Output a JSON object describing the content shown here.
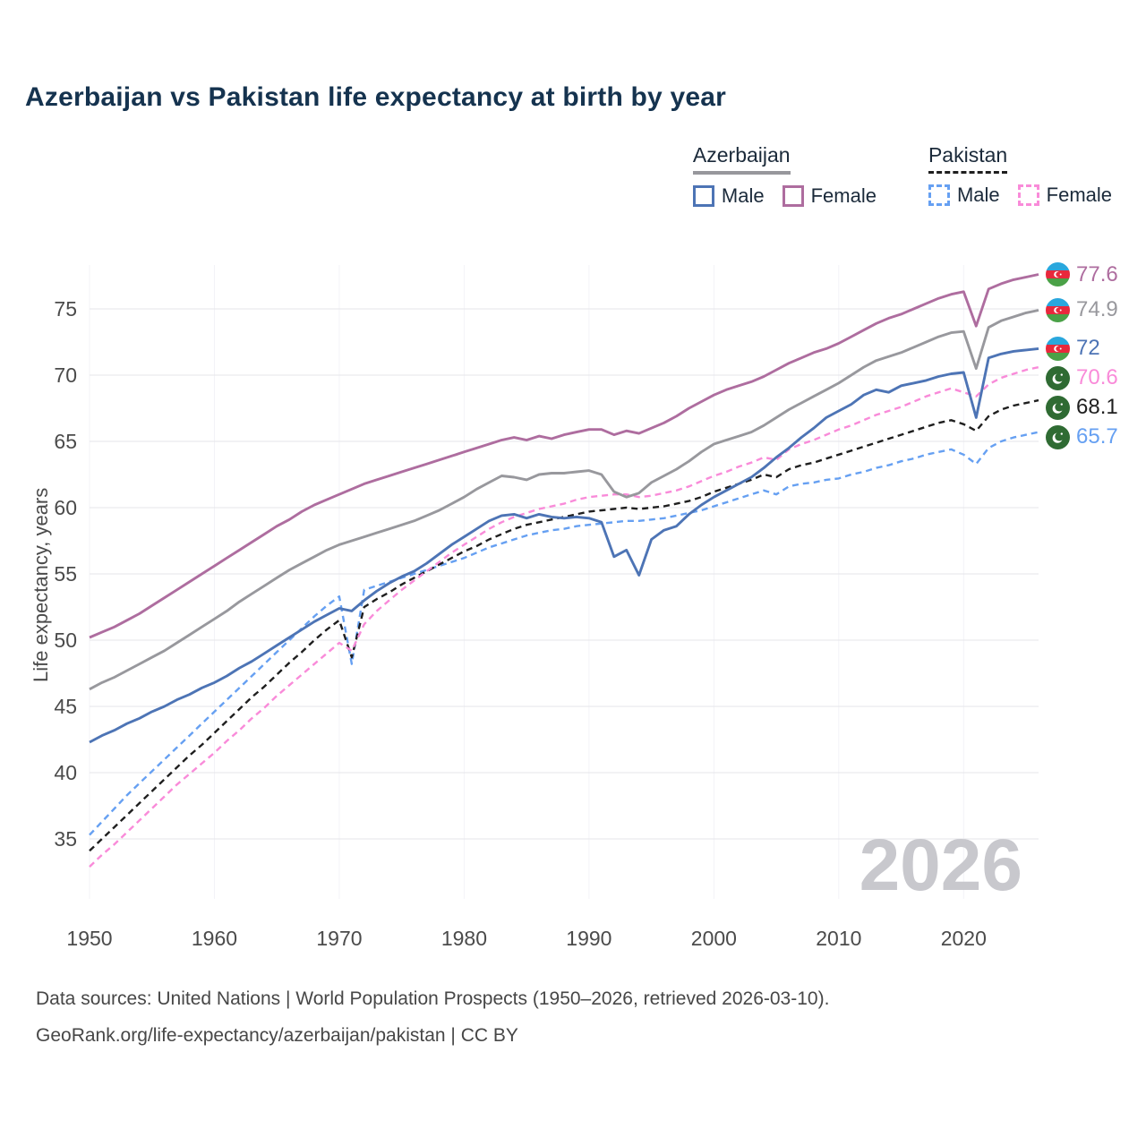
{
  "title": "Azerbaijan vs Pakistan life expectancy at birth by year",
  "watermark": "2026",
  "legend": {
    "groups": [
      {
        "label": "Azerbaijan",
        "line_style": "solid",
        "line_color": "#97979c",
        "items": [
          {
            "label": "Male",
            "color": "#4d74b5",
            "dash": false
          },
          {
            "label": "Female",
            "color": "#ae6d9f",
            "dash": false
          }
        ]
      },
      {
        "label": "Pakistan",
        "line_style": "dashed",
        "line_color": "#1f1f1f",
        "items": [
          {
            "label": "Male",
            "color": "#66a0f2",
            "dash": true
          },
          {
            "label": "Female",
            "color": "#f98bd9",
            "dash": true
          }
        ]
      }
    ]
  },
  "footer": {
    "line1": "Data sources: United Nations | World Population Prospects (1950–2026, retrieved 2026-03-10).",
    "line2": "GeoRank.org/life-expectancy/azerbaijan/pakistan | CC BY"
  },
  "chart_data": {
    "type": "line",
    "title": "Azerbaijan vs Pakistan life expectancy at birth by year",
    "xlabel": "",
    "ylabel": "Life expectancy, years",
    "x_ticks": [
      1950,
      1960,
      1970,
      1980,
      1990,
      2000,
      2010,
      2020
    ],
    "y_ticks": [
      35,
      40,
      45,
      50,
      55,
      60,
      65,
      70,
      75
    ],
    "xlim": [
      1950,
      2026
    ],
    "ylim": [
      32,
      78.5
    ],
    "grid": true,
    "legend_position": "top-right",
    "series": [
      {
        "id": "azerbaijan-female",
        "name": "Azerbaijan Female",
        "country": "Azerbaijan",
        "sex": "Female",
        "style": "solid",
        "color": "#ae6d9f",
        "flag": "azerbaijan",
        "end_label": "77.6",
        "start_year": 1950,
        "values": [
          50.2,
          50.6,
          51.0,
          51.5,
          52.0,
          52.6,
          53.2,
          53.8,
          54.4,
          55.0,
          55.6,
          56.2,
          56.8,
          57.4,
          58.0,
          58.6,
          59.1,
          59.7,
          60.2,
          60.6,
          61.0,
          61.4,
          61.8,
          62.1,
          62.4,
          62.7,
          63.0,
          63.3,
          63.6,
          63.9,
          64.2,
          64.5,
          64.8,
          65.1,
          65.3,
          65.1,
          65.4,
          65.2,
          65.5,
          65.7,
          65.9,
          65.9,
          65.5,
          65.8,
          65.6,
          66.0,
          66.4,
          66.9,
          67.5,
          68.0,
          68.5,
          68.9,
          69.2,
          69.5,
          69.9,
          70.4,
          70.9,
          71.3,
          71.7,
          72.0,
          72.4,
          72.9,
          73.4,
          73.9,
          74.3,
          74.6,
          75.0,
          75.4,
          75.8,
          76.1,
          76.3,
          73.7,
          76.5,
          76.9,
          77.2,
          77.4,
          77.6
        ]
      },
      {
        "id": "azerbaijan-both",
        "name": "Azerbaijan Both sexes",
        "country": "Azerbaijan",
        "sex": "Both sexes",
        "style": "solid",
        "color": "#98989d",
        "flag": "azerbaijan",
        "end_label": "74.9",
        "start_year": 1950,
        "values": [
          46.3,
          46.8,
          47.2,
          47.7,
          48.2,
          48.7,
          49.2,
          49.8,
          50.4,
          51.0,
          51.6,
          52.2,
          52.9,
          53.5,
          54.1,
          54.7,
          55.3,
          55.8,
          56.3,
          56.8,
          57.2,
          57.5,
          57.8,
          58.1,
          58.4,
          58.7,
          59.0,
          59.4,
          59.8,
          60.3,
          60.8,
          61.4,
          61.9,
          62.4,
          62.3,
          62.1,
          62.5,
          62.6,
          62.6,
          62.7,
          62.8,
          62.5,
          61.2,
          60.8,
          61.1,
          61.9,
          62.4,
          62.9,
          63.5,
          64.2,
          64.8,
          65.1,
          65.4,
          65.7,
          66.2,
          66.8,
          67.4,
          67.9,
          68.4,
          68.9,
          69.4,
          70.0,
          70.6,
          71.1,
          71.4,
          71.7,
          72.1,
          72.5,
          72.9,
          73.2,
          73.3,
          70.5,
          73.6,
          74.1,
          74.4,
          74.7,
          74.9
        ]
      },
      {
        "id": "azerbaijan-male",
        "name": "Azerbaijan Male",
        "country": "Azerbaijan",
        "sex": "Male",
        "style": "solid",
        "color": "#4d74b5",
        "flag": "azerbaijan",
        "end_label": "72",
        "start_year": 1950,
        "values": [
          42.3,
          42.8,
          43.2,
          43.7,
          44.1,
          44.6,
          45.0,
          45.5,
          45.9,
          46.4,
          46.8,
          47.3,
          47.9,
          48.4,
          49.0,
          49.6,
          50.2,
          50.8,
          51.4,
          51.9,
          52.4,
          52.2,
          53.0,
          53.7,
          54.3,
          54.8,
          55.2,
          55.8,
          56.5,
          57.2,
          57.8,
          58.4,
          59.0,
          59.4,
          59.5,
          59.2,
          59.5,
          59.3,
          59.2,
          59.3,
          59.2,
          58.9,
          56.3,
          56.8,
          54.9,
          57.6,
          58.3,
          58.6,
          59.5,
          60.2,
          60.8,
          61.3,
          61.8,
          62.3,
          63.0,
          63.8,
          64.5,
          65.3,
          66.0,
          66.8,
          67.3,
          67.8,
          68.5,
          68.9,
          68.7,
          69.2,
          69.4,
          69.6,
          69.9,
          70.1,
          70.2,
          66.8,
          71.3,
          71.6,
          71.8,
          71.9,
          72.0
        ]
      },
      {
        "id": "pakistan-female",
        "name": "Pakistan Female",
        "country": "Pakistan",
        "sex": "Female",
        "style": "dashed",
        "color": "#f98bd9",
        "flag": "pakistan",
        "end_label": "70.6",
        "start_year": 1950,
        "values": [
          32.9,
          33.8,
          34.6,
          35.5,
          36.4,
          37.3,
          38.2,
          39.1,
          39.9,
          40.7,
          41.5,
          42.4,
          43.2,
          44.1,
          44.9,
          45.8,
          46.6,
          47.4,
          48.2,
          49.0,
          49.8,
          49.2,
          51.2,
          52.2,
          53.0,
          53.8,
          54.5,
          55.2,
          55.9,
          56.6,
          57.2,
          57.8,
          58.4,
          58.9,
          59.3,
          59.6,
          59.9,
          60.1,
          60.3,
          60.6,
          60.8,
          60.9,
          61.0,
          61.0,
          60.8,
          60.9,
          61.1,
          61.3,
          61.6,
          62.0,
          62.4,
          62.7,
          63.1,
          63.4,
          63.8,
          63.6,
          64.4,
          64.8,
          65.1,
          65.5,
          65.9,
          66.2,
          66.6,
          67.0,
          67.3,
          67.6,
          68.0,
          68.4,
          68.7,
          69.0,
          68.7,
          68.4,
          69.3,
          69.8,
          70.1,
          70.4,
          70.6
        ]
      },
      {
        "id": "pakistan-both",
        "name": "Pakistan Both sexes",
        "country": "Pakistan",
        "sex": "Both sexes",
        "style": "dashed",
        "color": "#1f1f1f",
        "flag": "pakistan",
        "end_label": "68.1",
        "start_year": 1950,
        "values": [
          34.1,
          35.0,
          35.9,
          36.8,
          37.7,
          38.6,
          39.5,
          40.4,
          41.3,
          42.1,
          43.0,
          43.9,
          44.8,
          45.7,
          46.5,
          47.4,
          48.3,
          49.1,
          50.0,
          50.8,
          51.5,
          48.7,
          52.5,
          53.1,
          53.6,
          54.2,
          54.7,
          55.2,
          55.7,
          56.2,
          56.7,
          57.1,
          57.6,
          58.0,
          58.4,
          58.7,
          58.9,
          59.1,
          59.3,
          59.5,
          59.7,
          59.8,
          59.9,
          60.0,
          59.9,
          60.0,
          60.1,
          60.3,
          60.5,
          60.8,
          61.2,
          61.5,
          61.8,
          62.1,
          62.5,
          62.3,
          62.9,
          63.2,
          63.4,
          63.7,
          64.0,
          64.3,
          64.6,
          64.9,
          65.2,
          65.5,
          65.8,
          66.1,
          66.4,
          66.6,
          66.3,
          65.8,
          66.9,
          67.4,
          67.7,
          67.9,
          68.1
        ]
      },
      {
        "id": "pakistan-male",
        "name": "Pakistan Male",
        "country": "Pakistan",
        "sex": "Male",
        "style": "dashed",
        "color": "#66a0f2",
        "flag": "pakistan",
        "end_label": "65.7",
        "start_year": 1950,
        "values": [
          35.3,
          36.3,
          37.3,
          38.3,
          39.2,
          40.1,
          41.0,
          41.9,
          42.8,
          43.7,
          44.6,
          45.5,
          46.4,
          47.3,
          48.2,
          49.1,
          50.0,
          50.9,
          51.8,
          52.6,
          53.3,
          48.2,
          53.8,
          54.1,
          54.4,
          54.7,
          55.0,
          55.3,
          55.6,
          55.9,
          56.2,
          56.6,
          57.0,
          57.3,
          57.6,
          57.9,
          58.1,
          58.3,
          58.4,
          58.6,
          58.7,
          58.8,
          58.9,
          59.0,
          59.0,
          59.1,
          59.2,
          59.4,
          59.6,
          59.8,
          60.1,
          60.4,
          60.7,
          61.0,
          61.3,
          61.0,
          61.6,
          61.8,
          61.9,
          62.1,
          62.2,
          62.5,
          62.7,
          63.0,
          63.2,
          63.5,
          63.7,
          64.0,
          64.2,
          64.4,
          64.0,
          63.3,
          64.5,
          65.0,
          65.3,
          65.5,
          65.7
        ]
      }
    ]
  }
}
